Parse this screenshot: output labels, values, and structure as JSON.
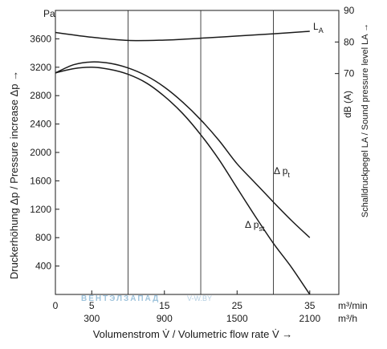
{
  "chart_data": {
    "type": "line",
    "title": "",
    "ylabel": "Druckerhöhung Δp / Pressure increase Δp →",
    "ylabel_right": "Schalldruckpegel LA / Sound pressure level LA →",
    "y_unit": "Pa",
    "y_unit_right": "dB (A)",
    "xlabel": "Volumenstrom V̇ / Volumetric flow rate V̇ →",
    "x_unit_primary": "m³/min",
    "x_unit_secondary": "m³/h",
    "xlim": [
      0,
      39
    ],
    "ylim": [
      0,
      4000
    ],
    "ylim_right": [
      0,
      90
    ],
    "x_ticks": [
      0,
      5,
      15,
      25,
      35
    ],
    "x_ticks_secondary": [
      {
        "x": 5,
        "label": "300"
      },
      {
        "x": 15,
        "label": "900"
      },
      {
        "x": 25,
        "label": "1500"
      },
      {
        "x": 35,
        "label": "2100"
      }
    ],
    "y_ticks": [
      400,
      800,
      1200,
      1600,
      2000,
      2400,
      2800,
      3200,
      3600
    ],
    "y_ticks_right": [
      70,
      80,
      90
    ],
    "vertical_gridlines": [
      10,
      20,
      30
    ],
    "series": [
      {
        "name": "Δ pt",
        "axis": "left",
        "x": [
          0,
          2.5,
          5,
          7.5,
          10,
          12.5,
          15,
          17.5,
          20,
          22.5,
          25,
          27.5,
          30,
          32.5,
          35
        ],
        "y": [
          3120,
          3235,
          3275,
          3255,
          3190,
          3080,
          2920,
          2710,
          2460,
          2170,
          1840,
          1570,
          1300,
          1040,
          800
        ]
      },
      {
        "name": "Δ pst",
        "axis": "left",
        "x": [
          0,
          2.5,
          5,
          7.5,
          10,
          12.5,
          15,
          17.5,
          20,
          22.5,
          25,
          27.5,
          30,
          32.5,
          35
        ],
        "y": [
          3120,
          3180,
          3200,
          3170,
          3100,
          2980,
          2790,
          2550,
          2250,
          1900,
          1500,
          1100,
          720,
          380,
          0
        ]
      },
      {
        "name": "LA",
        "axis": "right",
        "x": [
          0,
          5,
          10,
          15,
          20,
          25,
          30,
          35
        ],
        "y": [
          83,
          81.5,
          80.5,
          80.6,
          81.2,
          81.9,
          82.6,
          83.4
        ]
      }
    ],
    "series_labels": [
      {
        "text": "L",
        "sub": "A"
      },
      {
        "text": "Δ p",
        "sub": "t"
      },
      {
        "text": "Δ p",
        "sub": "st"
      }
    ],
    "watermark": {
      "main": "ВЕНТЭЛЗАПАД",
      "sub": "V-W.BY"
    }
  }
}
